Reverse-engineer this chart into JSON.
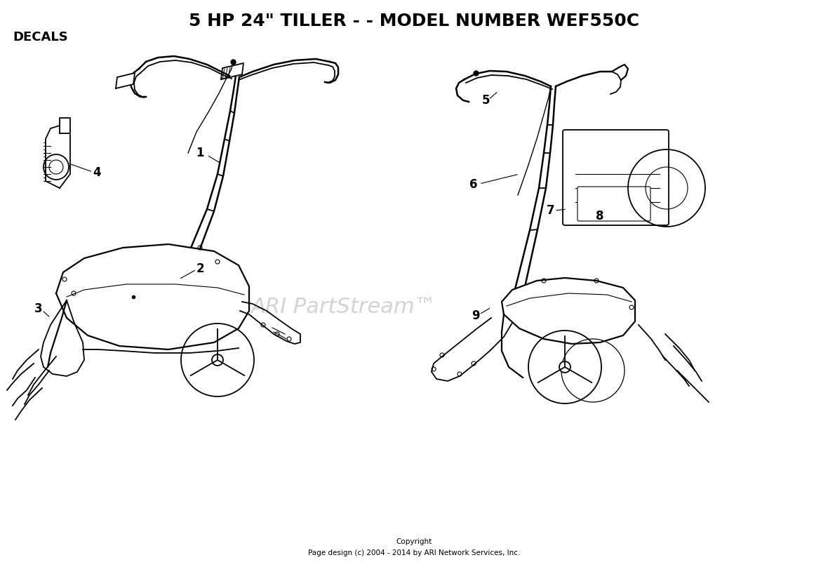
{
  "title": "5 HP 24\" TILLER - - MODEL NUMBER WEF550C",
  "section_label": "DECALS",
  "watermark": "ARI PartStream™",
  "copyright_line1": "Copyright",
  "copyright_line2": "Page design (c) 2004 - 2014 by ARI Network Services, Inc.",
  "bg_color": "#ffffff"
}
